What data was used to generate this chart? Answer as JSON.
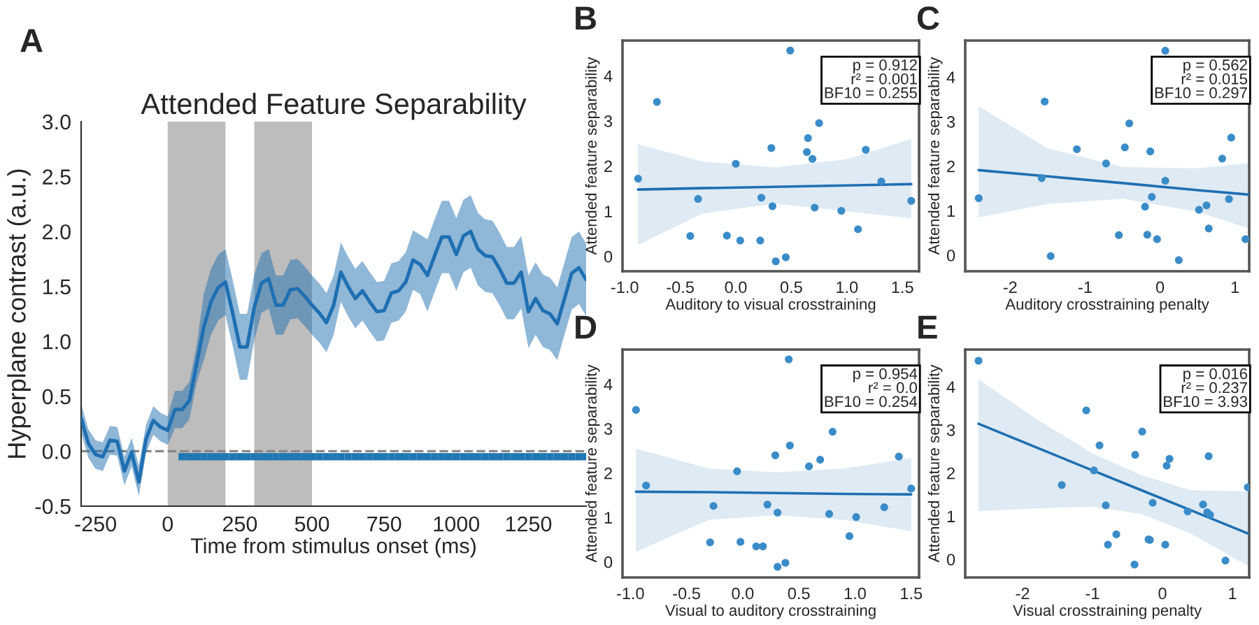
{
  "chart_data": [
    {
      "type": "line",
      "title": "Attended Feature Separability",
      "xlabel": "Time from stimulus onset (ms)",
      "ylabel": "Hyperplane contrast (a.u.)",
      "annotations": [
        "A"
      ],
      "xlim": [
        -300,
        1450
      ],
      "ylim": [
        -0.5,
        3.0
      ],
      "xticks": [
        -250,
        0,
        250,
        500,
        750,
        1000,
        1250
      ],
      "yticks": [
        -0.5,
        {
          "value": 0,
          "label": "0.0"
        },
        0.5,
        {
          "value": 1,
          "label": "1.0"
        },
        1.5,
        {
          "value": 2,
          "label": "2.0"
        },
        2.5,
        {
          "value": 3,
          "label": "3.0"
        }
      ],
      "grid": false,
      "legend": false,
      "bands": [
        {
          "axis": "x",
          "from": 0,
          "to": 200,
          "color": "#bdbdbd"
        },
        {
          "axis": "x",
          "from": 300,
          "to": 500,
          "color": "#bdbdbd"
        }
      ],
      "ref_lines": [
        {
          "axis": "y",
          "value": 0,
          "color": "#888888",
          "line_style": "dashed"
        }
      ],
      "series": [
        {
          "color": "#1f6fb2",
          "marker": "none",
          "line_style": "solid",
          "x": [
            -300,
            -275,
            -250,
            -225,
            -200,
            -175,
            -150,
            -125,
            -100,
            -75,
            -50,
            -25,
            0,
            25,
            50,
            75,
            100,
            125,
            150,
            175,
            200,
            225,
            250,
            275,
            300,
            325,
            350,
            375,
            400,
            425,
            450,
            475,
            500,
            525,
            550,
            575,
            600,
            625,
            650,
            675,
            700,
            725,
            750,
            775,
            800,
            825,
            850,
            875,
            900,
            925,
            950,
            975,
            1000,
            1025,
            1050,
            1075,
            1100,
            1125,
            1150,
            1175,
            1200,
            1225,
            1250,
            1275,
            1300,
            1325,
            1350,
            1375,
            1400,
            1425,
            1450
          ],
          "values": [
            0.3,
            0.07,
            -0.03,
            -0.05,
            0.1,
            0.09,
            -0.18,
            -0.01,
            -0.28,
            0.11,
            0.28,
            0.22,
            0.19,
            0.38,
            0.38,
            0.46,
            0.79,
            1.13,
            1.36,
            1.49,
            1.54,
            1.26,
            0.95,
            0.95,
            1.31,
            1.53,
            1.57,
            1.33,
            1.33,
            1.47,
            1.48,
            1.41,
            1.33,
            1.26,
            1.17,
            1.33,
            1.63,
            1.5,
            1.39,
            1.46,
            1.36,
            1.27,
            1.28,
            1.44,
            1.46,
            1.54,
            1.74,
            1.7,
            1.6,
            1.78,
            1.95,
            1.95,
            1.79,
            1.96,
            2.0,
            1.84,
            1.78,
            1.77,
            1.66,
            1.53,
            1.53,
            1.63,
            1.27,
            1.39,
            1.28,
            1.25,
            1.16,
            1.39,
            1.62,
            1.67,
            1.56
          ],
          "upper": [
            0.43,
            0.2,
            0.1,
            0.08,
            0.23,
            0.22,
            -0.05,
            0.12,
            -0.13,
            0.24,
            0.41,
            0.35,
            0.32,
            0.55,
            0.55,
            0.63,
            0.96,
            1.43,
            1.66,
            1.79,
            1.84,
            1.56,
            1.25,
            1.25,
            1.61,
            1.8,
            1.84,
            1.6,
            1.6,
            1.74,
            1.75,
            1.68,
            1.6,
            1.53,
            1.44,
            1.6,
            1.9,
            1.77,
            1.66,
            1.73,
            1.63,
            1.54,
            1.55,
            1.71,
            1.73,
            1.81,
            2.01,
            1.97,
            1.93,
            2.11,
            2.28,
            2.28,
            2.12,
            2.29,
            2.33,
            2.17,
            2.11,
            2.1,
            1.99,
            1.86,
            1.86,
            1.96,
            1.6,
            1.72,
            1.61,
            1.58,
            1.49,
            1.72,
            1.95,
            2.0,
            1.89
          ],
          "lower": [
            0.17,
            -0.06,
            -0.16,
            -0.18,
            -0.03,
            -0.04,
            -0.31,
            -0.14,
            -0.41,
            -0.02,
            0.15,
            0.09,
            0.06,
            0.21,
            0.21,
            0.29,
            0.62,
            0.83,
            1.06,
            1.19,
            1.24,
            0.96,
            0.65,
            0.65,
            1.01,
            1.26,
            1.3,
            1.06,
            1.06,
            1.2,
            1.21,
            1.14,
            1.06,
            0.99,
            0.9,
            1.06,
            1.36,
            1.23,
            1.12,
            1.19,
            1.09,
            1.0,
            1.01,
            1.17,
            1.19,
            1.27,
            1.47,
            1.43,
            1.27,
            1.45,
            1.62,
            1.62,
            1.46,
            1.63,
            1.67,
            1.51,
            1.45,
            1.44,
            1.33,
            1.2,
            1.2,
            1.3,
            0.94,
            1.06,
            0.95,
            0.92,
            0.83,
            1.06,
            1.29,
            1.34,
            1.23
          ]
        },
        {
          "type": "scatter",
          "color": "#1f77b4",
          "marker": "square",
          "x": [
            50,
            75,
            100,
            125,
            150,
            175,
            200,
            225,
            250,
            275,
            300,
            325,
            350,
            375,
            400,
            425,
            450,
            475,
            500,
            525,
            550,
            575,
            600,
            625,
            650,
            675,
            700,
            725,
            750,
            775,
            800,
            825,
            850,
            875,
            900,
            925,
            950,
            975,
            1000,
            1025,
            1050,
            1075,
            1100,
            1125,
            1150,
            1175,
            1200,
            1225,
            1250,
            1275,
            1300,
            1325,
            1350,
            1375,
            1400,
            1425,
            1450
          ],
          "values": [
            -0.05,
            -0.05,
            -0.05,
            -0.05,
            -0.05,
            -0.05,
            -0.05,
            -0.05,
            -0.05,
            -0.05,
            -0.05,
            -0.05,
            -0.05,
            -0.05,
            -0.05,
            -0.05,
            -0.05,
            -0.05,
            -0.05,
            -0.05,
            -0.05,
            -0.05,
            -0.05,
            -0.05,
            -0.05,
            -0.05,
            -0.05,
            -0.05,
            -0.05,
            -0.05,
            -0.05,
            -0.05,
            -0.05,
            -0.05,
            -0.05,
            -0.05,
            -0.05,
            -0.05,
            -0.05,
            -0.05,
            -0.05,
            -0.05,
            -0.05,
            -0.05,
            -0.05,
            -0.05,
            -0.05,
            -0.05,
            -0.05,
            -0.05,
            -0.05,
            -0.05,
            -0.05,
            -0.05,
            -0.05,
            -0.05,
            -0.05
          ]
        }
      ]
    },
    {
      "type": "scatter",
      "xlabel": "Auditory to visual crosstraining",
      "ylabel": "Attended feature separability",
      "annotations": [
        "B",
        "p = 0.912\nr² = 0.001\nBF10 = 0.255"
      ],
      "xlim": [
        -1.02,
        1.65
      ],
      "ylim": [
        -0.33,
        4.78
      ],
      "xticks": [
        {
          "value": -1,
          "label": "-1.0"
        },
        -0.5,
        {
          "value": 0,
          "label": "0.0"
        },
        0.5,
        {
          "value": 1,
          "label": "1.0"
        },
        1.5
      ],
      "yticks": [
        0,
        1,
        2,
        3,
        4
      ],
      "grid": false,
      "legend": false,
      "series": [
        {
          "color": "#3a8cc8",
          "marker": "circle",
          "x": [
            -0.88,
            -0.71,
            -0.41,
            -0.34,
            -0.08,
            0.0,
            0.04,
            0.22,
            0.23,
            0.32,
            0.33,
            0.36,
            0.45,
            0.49,
            0.65,
            0.64,
            0.69,
            0.71,
            0.75,
            0.95,
            1.1,
            1.17,
            1.31,
            1.58
          ],
          "values": [
            1.72,
            3.42,
            0.45,
            1.27,
            0.46,
            2.05,
            0.35,
            0.35,
            1.3,
            2.4,
            1.11,
            -0.11,
            -0.02,
            4.56,
            2.62,
            2.31,
            2.16,
            1.08,
            2.95,
            1.01,
            0.6,
            2.36,
            1.66,
            1.23
          ]
        },
        {
          "type": "line",
          "color": "#1f6fb2",
          "marker": "none",
          "line_style": "solid",
          "x": [
            -0.88,
            -0.3,
            0.35,
            1.0,
            1.58
          ],
          "values": [
            1.48,
            1.51,
            1.54,
            1.57,
            1.6
          ],
          "upper": [
            2.48,
            2.1,
            1.97,
            2.15,
            2.6
          ],
          "lower": [
            0.25,
            0.95,
            1.17,
            1.0,
            0.84
          ]
        }
      ]
    },
    {
      "type": "scatter",
      "xlabel": "Auditory crosstraining penalty",
      "ylabel": "Attended feature separability",
      "annotations": [
        "C",
        "p = 0.562\nr² = 0.015\nBF10 = 0.297"
      ],
      "xlim": [
        -2.6,
        1.19
      ],
      "ylim": [
        -0.36,
        4.82
      ],
      "xticks": [
        -2,
        -1,
        0,
        1
      ],
      "yticks": [
        0,
        1,
        2,
        3,
        4
      ],
      "grid": false,
      "legend": false,
      "series": [
        {
          "color": "#3a8cc8",
          "marker": "circle",
          "x": [
            -2.42,
            -1.54,
            -1.58,
            -1.46,
            -1.11,
            -0.72,
            -0.55,
            -0.47,
            -0.41,
            -0.2,
            -0.17,
            -0.13,
            -0.11,
            -0.04,
            0.07,
            0.07,
            0.25,
            0.52,
            0.62,
            0.65,
            0.83,
            0.92,
            0.95,
            1.14
          ],
          "values": [
            1.28,
            3.45,
            1.73,
            -0.02,
            2.38,
            2.06,
            0.45,
            2.42,
            2.96,
            1.09,
            0.46,
            2.33,
            1.31,
            0.36,
            4.59,
            1.67,
            -0.11,
            1.02,
            1.12,
            0.6,
            2.17,
            1.26,
            2.64,
            0.36
          ]
        },
        {
          "type": "line",
          "color": "#1f6fb2",
          "marker": "none",
          "line_style": "solid",
          "x": [
            -2.42,
            -1.5,
            -0.5,
            0.5,
            1.19
          ],
          "values": [
            1.91,
            1.77,
            1.62,
            1.46,
            1.36
          ],
          "upper": [
            3.35,
            2.4,
            1.98,
            1.95,
            2.07
          ],
          "lower": [
            0.85,
            1.15,
            1.27,
            0.98,
            0.6
          ]
        }
      ]
    },
    {
      "type": "scatter",
      "xlabel": "Visual to auditory crosstraining",
      "ylabel": "Attended feature separability",
      "annotations": [
        "D",
        "p = 0.954\nr² = 0.0\nBF10 = 0.254"
      ],
      "xlim": [
        -1.07,
        1.57
      ],
      "ylim": [
        -0.35,
        4.78
      ],
      "xticks": [
        {
          "value": -1,
          "label": "-1.0"
        },
        -0.5,
        {
          "value": 0,
          "label": "0.0"
        },
        0.5,
        {
          "value": 1,
          "label": "1.0"
        },
        1.5
      ],
      "yticks": [
        0,
        1,
        2,
        3,
        4
      ],
      "grid": false,
      "legend": false,
      "series": [
        {
          "color": "#3a8cc8",
          "marker": "circle",
          "x": [
            -0.95,
            -0.86,
            -0.29,
            -0.26,
            -0.05,
            -0.02,
            0.12,
            0.18,
            0.22,
            0.29,
            0.31,
            0.31,
            0.38,
            0.41,
            0.42,
            0.59,
            0.69,
            0.77,
            0.8,
            0.95,
            1.01,
            1.26,
            1.39,
            1.5
          ],
          "values": [
            3.42,
            1.72,
            0.44,
            1.26,
            2.04,
            0.45,
            0.35,
            0.35,
            1.29,
            2.4,
            1.11,
            -0.11,
            -0.02,
            4.56,
            2.62,
            2.15,
            2.3,
            1.08,
            2.93,
            0.58,
            1.01,
            1.23,
            2.37,
            1.65
          ]
        },
        {
          "type": "line",
          "color": "#1f6fb2",
          "marker": "none",
          "line_style": "solid",
          "x": [
            -0.95,
            -0.3,
            0.3,
            0.9,
            1.5
          ],
          "values": [
            1.58,
            1.57,
            1.55,
            1.53,
            1.52
          ],
          "upper": [
            2.55,
            2.1,
            2.02,
            2.1,
            2.34
          ],
          "lower": [
            0.23,
            0.95,
            1.05,
            0.95,
            0.69
          ]
        }
      ]
    },
    {
      "type": "scatter",
      "xlabel": "Visual crosstraining penalty",
      "ylabel": "Attended feature separability",
      "annotations": [
        "E",
        "p = 0.016\nr² = 0.237\nBF10 = 3.93"
      ],
      "xlim": [
        -2.82,
        1.24
      ],
      "ylim": [
        -0.42,
        4.86
      ],
      "xticks": [
        -2,
        -1,
        0,
        1
      ],
      "yticks": [
        0,
        1,
        2,
        3,
        4
      ],
      "grid": false,
      "legend": false,
      "series": [
        {
          "color": "#3a8cc8",
          "marker": "circle",
          "x": [
            -2.63,
            -1.09,
            -1.44,
            -0.9,
            -0.98,
            -0.81,
            -0.78,
            -0.66,
            -0.4,
            -0.39,
            -0.29,
            -0.2,
            -0.18,
            -0.14,
            0.04,
            0.06,
            0.1,
            0.36,
            0.58,
            0.64,
            0.68,
            0.66,
            0.9,
            1.22
          ],
          "values": [
            4.6,
            3.45,
            1.72,
            2.64,
            2.06,
            1.25,
            0.34,
            0.58,
            -0.12,
            2.42,
            2.96,
            0.46,
            0.45,
            1.31,
            0.34,
            2.17,
            2.33,
            1.11,
            1.27,
            1.09,
            1.03,
            2.39,
            -0.03,
            1.67
          ]
        },
        {
          "type": "line",
          "color": "#1f6fb2",
          "marker": "none",
          "line_style": "solid",
          "x": [
            -2.63,
            -1.8,
            -1.0,
            -0.3,
            0.4,
            1.22
          ],
          "values": [
            3.14,
            2.59,
            2.06,
            1.6,
            1.14,
            0.6
          ],
          "upper": [
            4.17,
            3.25,
            2.45,
            1.95,
            1.6,
            1.57
          ],
          "lower": [
            1.12,
            1.18,
            1.22,
            1.05,
            0.6,
            -0.15
          ]
        }
      ]
    }
  ]
}
